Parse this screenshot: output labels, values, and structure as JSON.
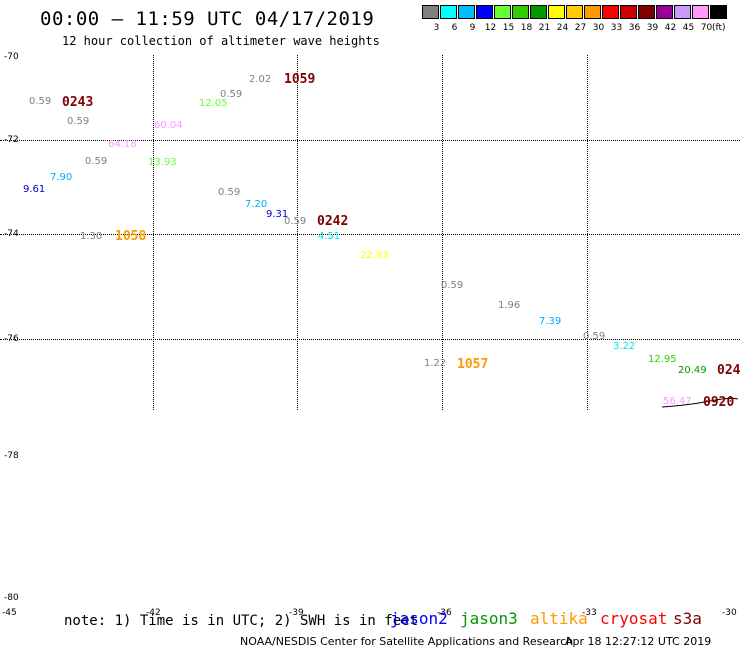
{
  "header": {
    "title": "00:00 – 11:59 UTC 04/17/2019",
    "subtitle": "12 hour collection of altimeter wave heights"
  },
  "legend": {
    "levels": [
      "3",
      "6",
      "9",
      "12",
      "15",
      "18",
      "21",
      "24",
      "27",
      "30",
      "33",
      "36",
      "39",
      "42",
      "45",
      "70"
    ],
    "colors": [
      "#808080",
      "#00ffff",
      "#00bfff",
      "#0000ff",
      "#66ff33",
      "#33cc00",
      "#009900",
      "#ffff00",
      "#ffcc00",
      "#ff9900",
      "#ff0000",
      "#cc0000",
      "#800000",
      "#990099",
      "#cc99ff",
      "#ff99ff",
      "#000000"
    ],
    "unit": "(ft)"
  },
  "axes": {
    "lat_labels": [
      "-70",
      "-72",
      "-74",
      "-76",
      "-78",
      "-80"
    ],
    "lon_labels": [
      "-45",
      "-42",
      "-39",
      "-36",
      "-33",
      "-30"
    ]
  },
  "wave_labels": [
    {
      "text": "0.59",
      "color": "#808080"
    },
    {
      "text": "0.59",
      "color": "#808080"
    },
    {
      "text": "0.59",
      "color": "#808080"
    },
    {
      "text": "9.61",
      "color": "#0000cc"
    },
    {
      "text": "7.90",
      "color": "#00aaff"
    },
    {
      "text": "64.18",
      "color": "#ff99ff"
    },
    {
      "text": "60.04",
      "color": "#ff99ff"
    },
    {
      "text": "13.93",
      "color": "#66ff33"
    },
    {
      "text": "12.05",
      "color": "#66ff33"
    },
    {
      "text": "0.59",
      "color": "#808080"
    },
    {
      "text": "2.02",
      "color": "#808080"
    },
    {
      "text": "0.59",
      "color": "#808080"
    },
    {
      "text": "7.20",
      "color": "#00aaff"
    },
    {
      "text": "9.31",
      "color": "#0000cc"
    },
    {
      "text": "0.59",
      "color": "#808080"
    },
    {
      "text": "4.51",
      "color": "#00e5e5"
    },
    {
      "text": "1.30",
      "color": "#808080"
    },
    {
      "text": "22.93",
      "color": "#ffff00"
    },
    {
      "text": "0.59",
      "color": "#808080"
    },
    {
      "text": "1.96",
      "color": "#808080"
    },
    {
      "text": "7.39",
      "color": "#00aaff"
    },
    {
      "text": "0.59",
      "color": "#808080"
    },
    {
      "text": "3.22",
      "color": "#00e5e5"
    },
    {
      "text": "12.95",
      "color": "#33cc00"
    },
    {
      "text": "20.49",
      "color": "#009900"
    },
    {
      "text": "1.22",
      "color": "#808080"
    },
    {
      "text": "56.47",
      "color": "#ff99ff"
    }
  ],
  "time_labels": [
    {
      "text": "0243",
      "color": "#800000"
    },
    {
      "text": "1059",
      "color": "#800000"
    },
    {
      "text": "0242",
      "color": "#800000"
    },
    {
      "text": "1058",
      "color": "#ff9900"
    },
    {
      "text": "1057",
      "color": "#ff9900"
    },
    {
      "text": "024",
      "color": "#800000"
    },
    {
      "text": "0920",
      "color": "#800000"
    }
  ],
  "footer": {
    "note": "note: 1) Time is in UTC; 2) SWH is in feet",
    "satellites": [
      {
        "name": "jason2",
        "color": "#0000ff"
      },
      {
        "name": "jason3",
        "color": "#009900"
      },
      {
        "name": "altika",
        "color": "#ff9900"
      },
      {
        "name": "cryosat",
        "color": "#ff0000"
      },
      {
        "name": "s3a",
        "color": "#800000"
      }
    ],
    "credit": "NOAA/NESDIS Center for Satellite Applications and Research",
    "date": "Apr 18 12:27:12 UTC 2019"
  }
}
